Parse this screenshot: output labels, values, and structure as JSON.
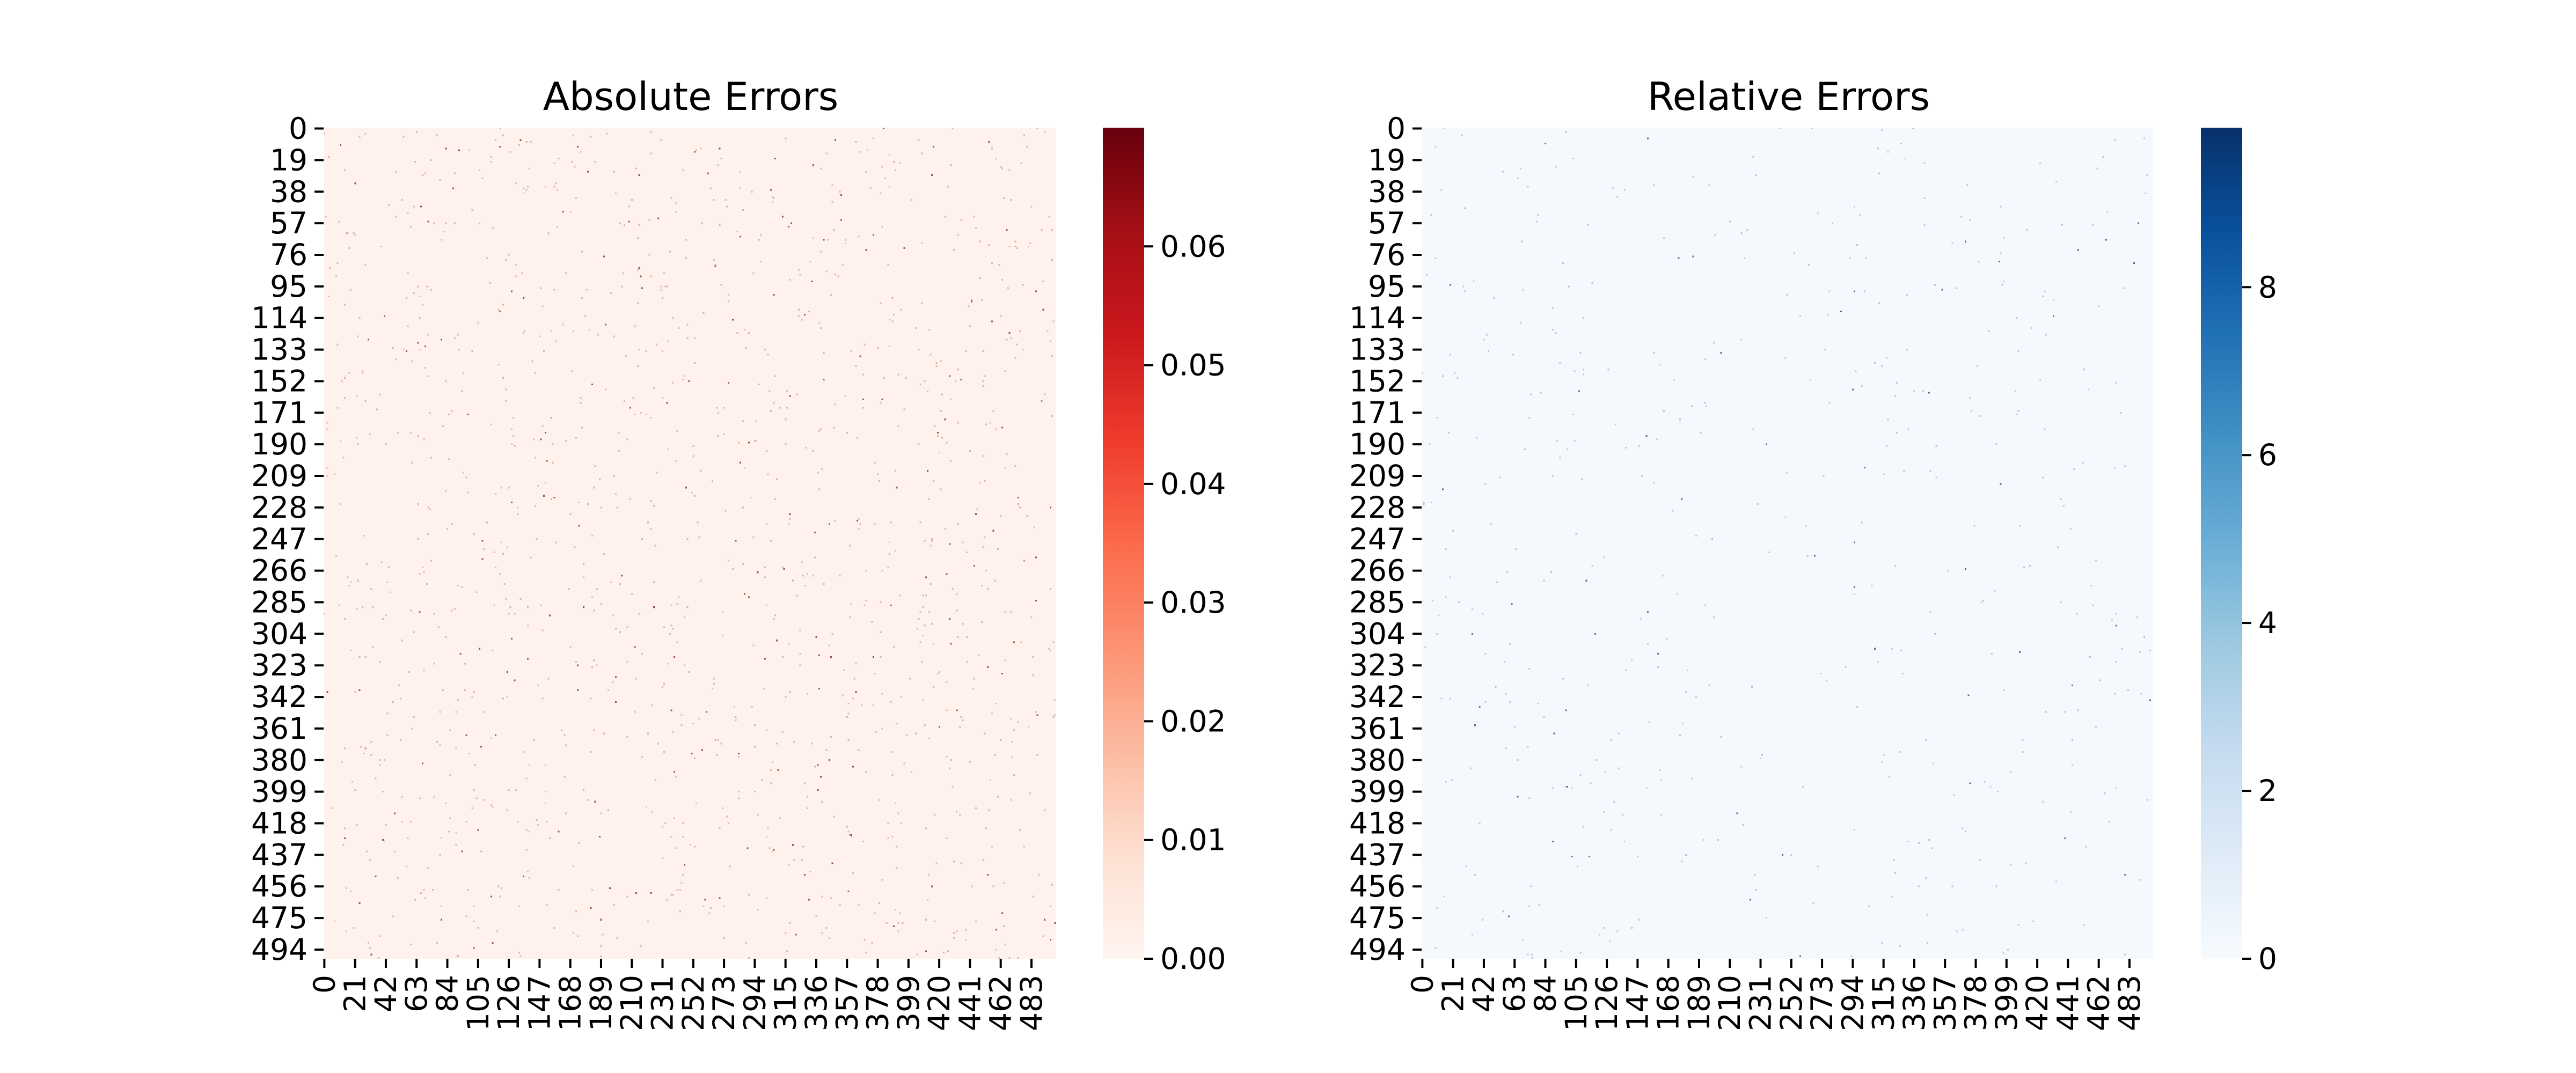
{
  "chart_data": [
    {
      "type": "heatmap",
      "title": "Absolute Errors",
      "xlabel": "",
      "ylabel": "",
      "rows": 500,
      "cols": 500,
      "y_tick_labels": [
        "0",
        "19",
        "38",
        "57",
        "76",
        "95",
        "114",
        "133",
        "152",
        "171",
        "190",
        "209",
        "228",
        "247",
        "266",
        "285",
        "304",
        "323",
        "342",
        "361",
        "380",
        "399",
        "418",
        "437",
        "456",
        "475",
        "494"
      ],
      "x_tick_labels": [
        "0",
        "21",
        "42",
        "63",
        "84",
        "105",
        "126",
        "147",
        "168",
        "189",
        "210",
        "231",
        "252",
        "273",
        "294",
        "315",
        "336",
        "357",
        "378",
        "399",
        "420",
        "441",
        "462",
        "483"
      ],
      "colormap": "Reds",
      "colormap_stops": [
        "#fff5f0",
        "#fee0d2",
        "#fcbba1",
        "#fc9272",
        "#fb6a4a",
        "#ef3b2c",
        "#cb181d",
        "#a50f15",
        "#67000d"
      ],
      "value_range": [
        0,
        0.07
      ],
      "colorbar_ticks": [
        "0.00",
        "0.01",
        "0.02",
        "0.03",
        "0.04",
        "0.05",
        "0.06"
      ],
      "colorbar_tick_values": [
        0,
        0.01,
        0.02,
        0.03,
        0.04,
        0.05,
        0.06
      ],
      "typical_value": 0.001,
      "background_color": "#fff1eb",
      "speck_color": "#7a1c1c",
      "grid": false,
      "legend": "colorbar-right"
    },
    {
      "type": "heatmap",
      "title": "Relative Errors",
      "xlabel": "",
      "ylabel": "",
      "rows": 500,
      "cols": 500,
      "y_tick_labels": [
        "0",
        "19",
        "38",
        "57",
        "76",
        "95",
        "114",
        "133",
        "152",
        "171",
        "190",
        "209",
        "228",
        "247",
        "266",
        "285",
        "304",
        "323",
        "342",
        "361",
        "380",
        "399",
        "418",
        "437",
        "456",
        "475",
        "494"
      ],
      "x_tick_labels": [
        "0",
        "21",
        "42",
        "63",
        "84",
        "105",
        "126",
        "147",
        "168",
        "189",
        "210",
        "231",
        "252",
        "273",
        "294",
        "315",
        "336",
        "357",
        "378",
        "399",
        "420",
        "441",
        "462",
        "483"
      ],
      "colormap": "Blues",
      "colormap_stops": [
        "#f7fbff",
        "#deebf7",
        "#c6dbef",
        "#9ecae1",
        "#6baed6",
        "#4292c6",
        "#2171b5",
        "#08519c",
        "#08306b"
      ],
      "value_range": [
        0,
        9.9
      ],
      "colorbar_ticks": [
        "0",
        "2",
        "4",
        "6",
        "8"
      ],
      "colorbar_tick_values": [
        0,
        2,
        4,
        6,
        8
      ],
      "typical_value": 0.02,
      "background_color": "#f5f9fe",
      "speck_color": "#1f3f6b",
      "grid": false,
      "legend": "colorbar-right"
    }
  ]
}
